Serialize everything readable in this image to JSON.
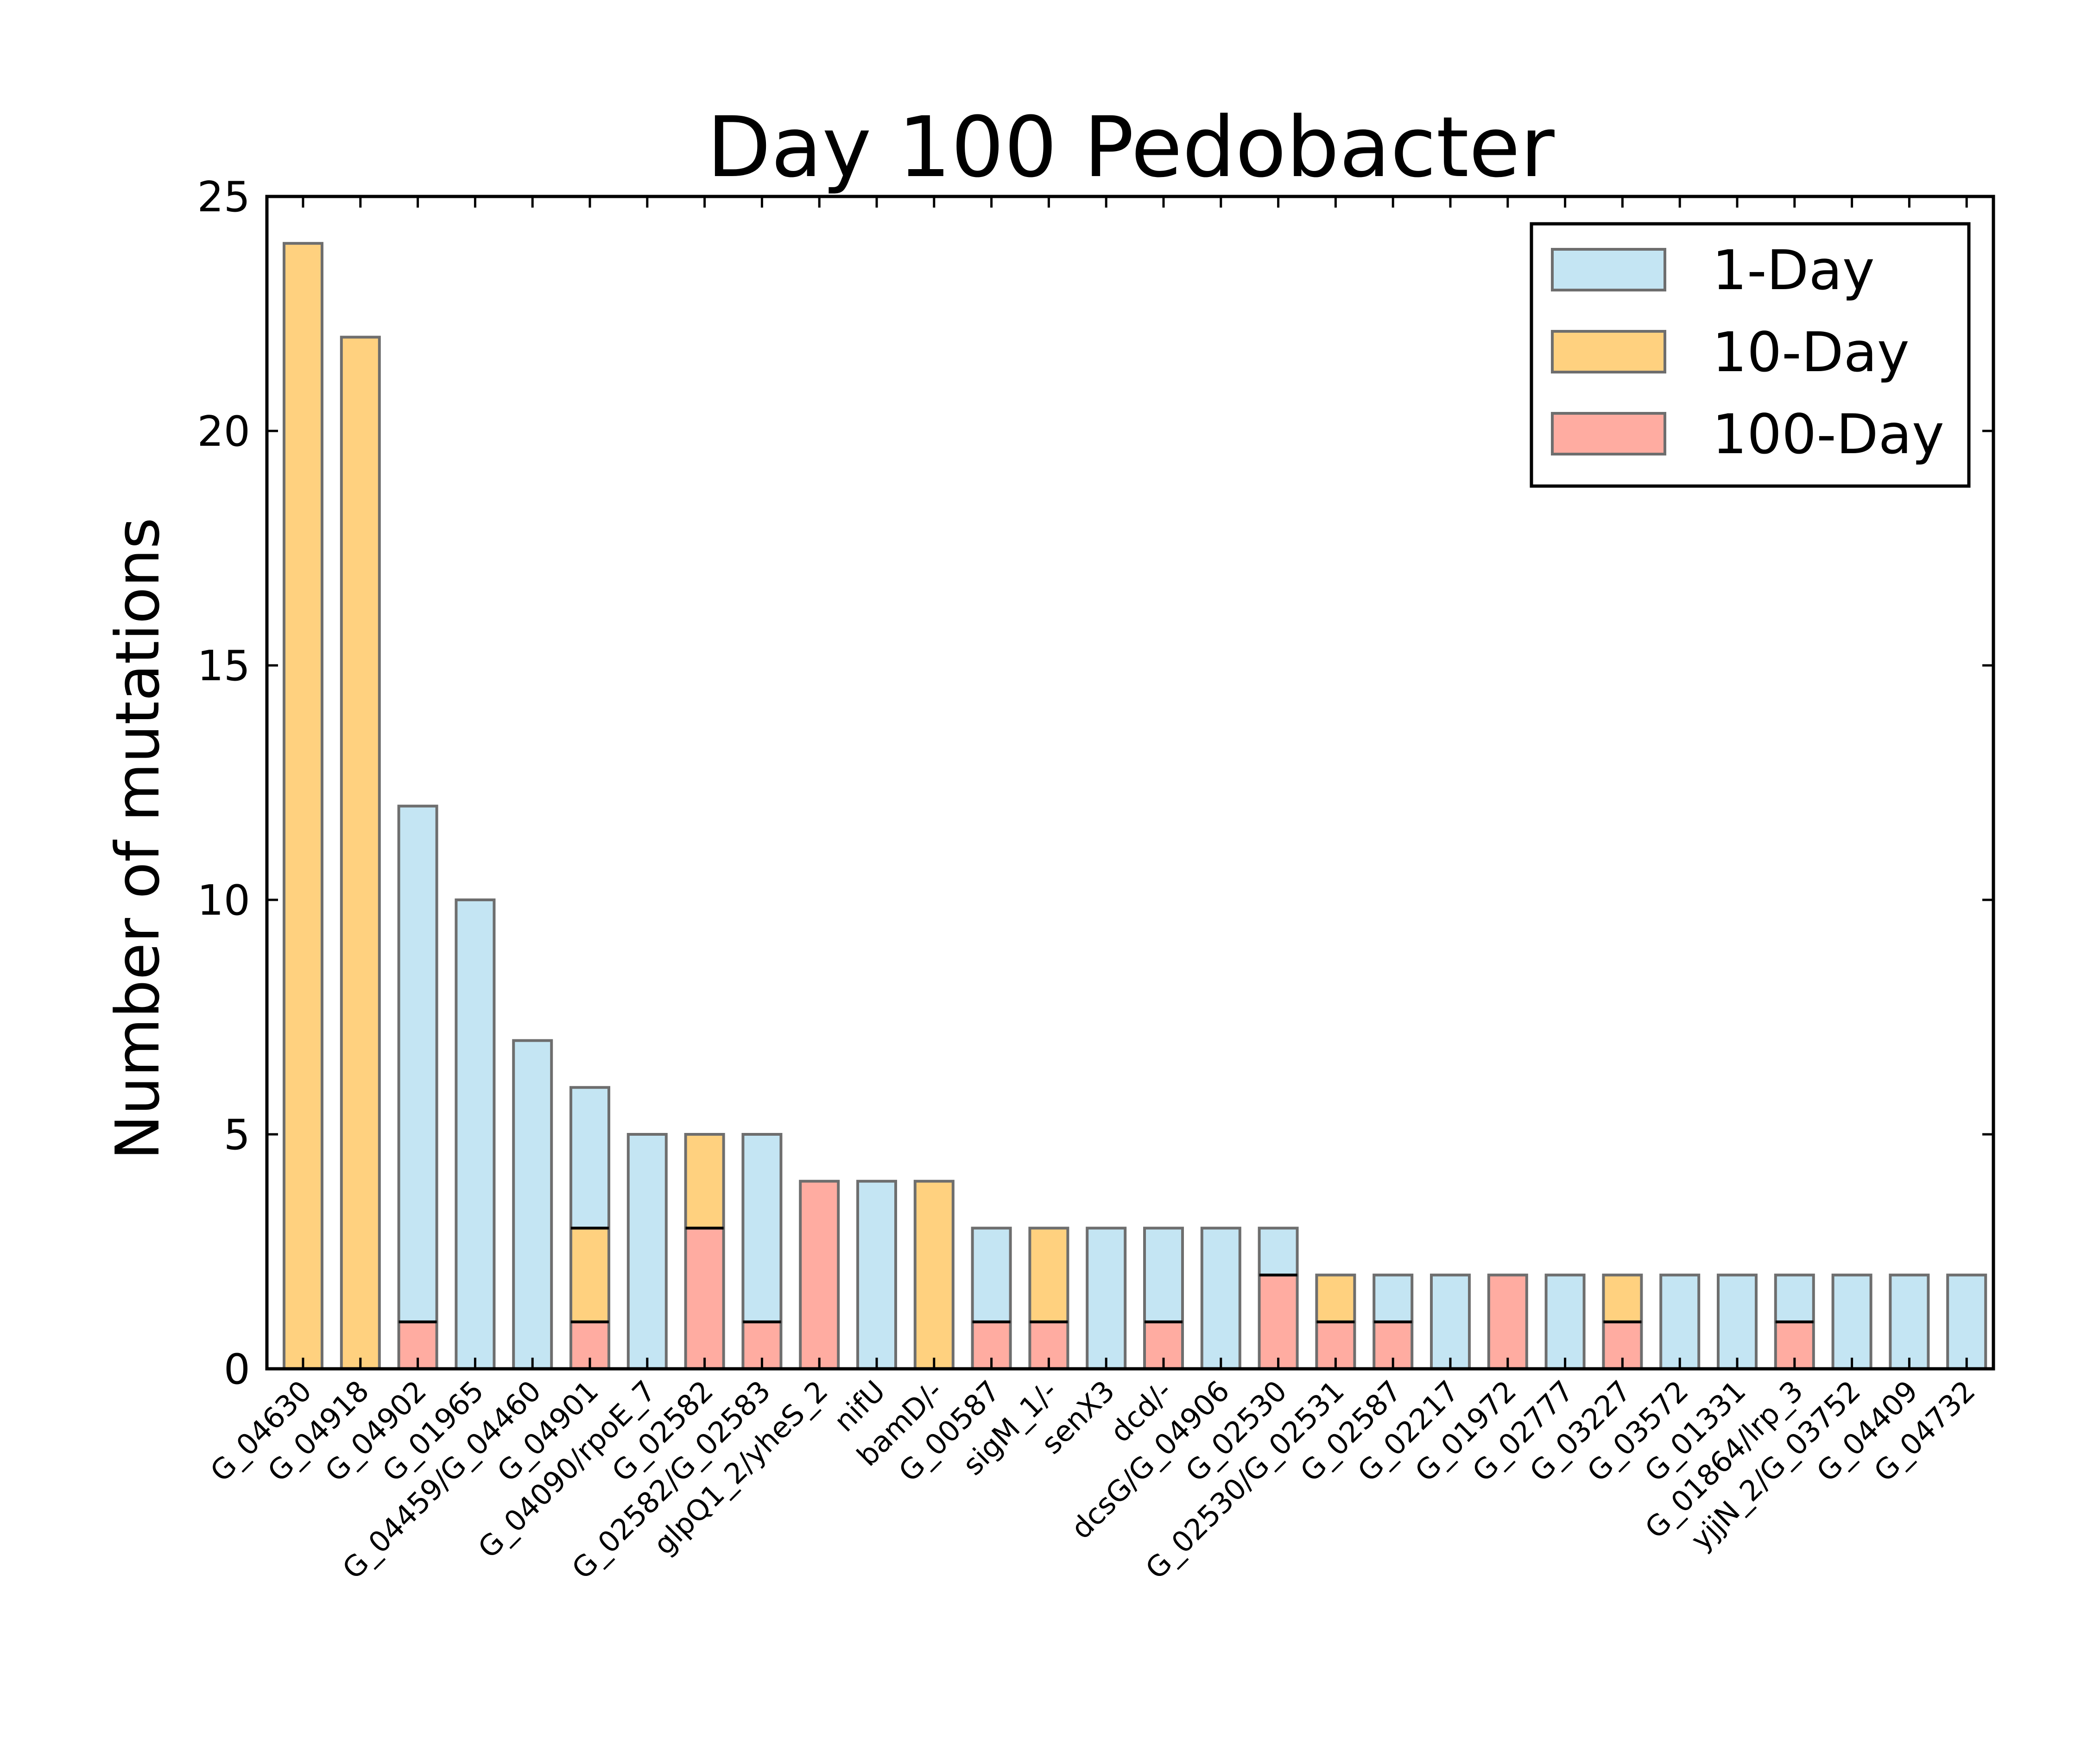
{
  "chart_data": {
    "type": "bar",
    "stacked": true,
    "title": "Day 100 Pedobacter",
    "xlabel": "",
    "ylabel": "Number of mutations",
    "ylim": [
      0,
      25
    ],
    "yticks": [
      "0",
      "5",
      "10",
      "15",
      "20",
      "25"
    ],
    "grid": false,
    "legend_position": "top-right",
    "categories": [
      "G_04630",
      "G_04918",
      "G_04902",
      "G_01965",
      "G_04459/G_04460",
      "G_04901",
      "G_04090/rpoE_7",
      "G_02582",
      "G_02582/G_02583",
      "glpQ1_2/yheS_2",
      "nifU",
      "bamD/-",
      "G_00587",
      "sigM_1/-",
      "senX3",
      "dcd/-",
      "dcsG/G_04906",
      "G_02530",
      "G_02530/G_02531",
      "G_02587",
      "G_02217",
      "G_01972",
      "G_02777",
      "G_03227",
      "G_03572",
      "G_01331",
      "G_01864/lrp_3",
      "yjjN_2/G_03752",
      "G_04409",
      "G_04732"
    ],
    "series": [
      {
        "name": "100-Day",
        "color": "#ffaca1",
        "values": [
          0,
          0,
          1,
          0,
          0,
          1,
          0,
          3,
          1,
          4,
          0,
          0,
          1,
          1,
          0,
          1,
          0,
          2,
          1,
          1,
          0,
          2,
          0,
          1,
          0,
          0,
          1,
          0,
          0,
          0
        ]
      },
      {
        "name": "10-Day",
        "color": "#ffd17f",
        "values": [
          24,
          22,
          0,
          0,
          0,
          2,
          0,
          2,
          0,
          0,
          0,
          4,
          0,
          2,
          0,
          0,
          0,
          0,
          1,
          0,
          0,
          0,
          0,
          1,
          0,
          0,
          0,
          0,
          0,
          0
        ]
      },
      {
        "name": "1-Day",
        "color": "#c4e5f3",
        "values": [
          0,
          0,
          11,
          10,
          7,
          3,
          5,
          0,
          4,
          0,
          4,
          0,
          2,
          0,
          3,
          2,
          3,
          1,
          0,
          1,
          2,
          0,
          2,
          0,
          2,
          2,
          1,
          2,
          2,
          2
        ]
      }
    ]
  }
}
